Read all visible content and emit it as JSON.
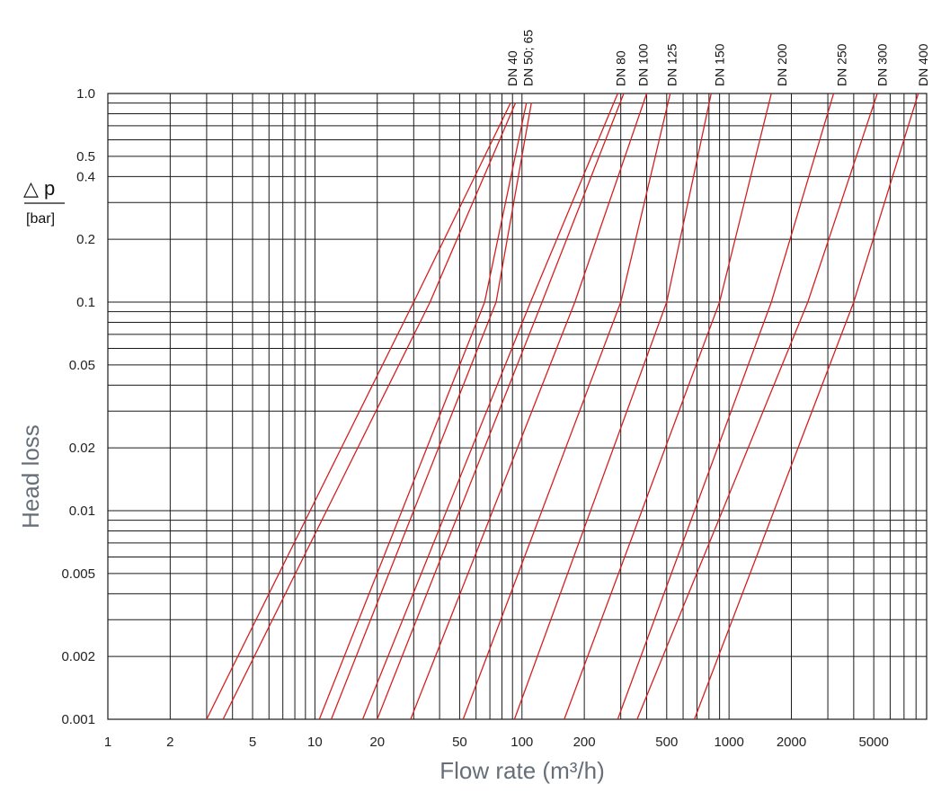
{
  "chart_data": {
    "type": "line",
    "scale": {
      "x": "log",
      "y": "log"
    },
    "xlabel": "Flow rate (m³/h)",
    "ylabel": "Head loss",
    "ylabel_symbol": "△ p",
    "ylabel_unit": "[bar]",
    "xlim": [
      1,
      9000
    ],
    "ylim": [
      0.001,
      1.0
    ],
    "grid": true,
    "x_ticks": [
      {
        "value": 1,
        "label": "1"
      },
      {
        "value": 2,
        "label": "2"
      },
      {
        "value": 5,
        "label": "5"
      },
      {
        "value": 10,
        "label": "10"
      },
      {
        "value": 20,
        "label": "20"
      },
      {
        "value": 50,
        "label": "50"
      },
      {
        "value": 100,
        "label": "100"
      },
      {
        "value": 200,
        "label": "200"
      },
      {
        "value": 500,
        "label": "500"
      },
      {
        "value": 1000,
        "label": "1000"
      },
      {
        "value": 2000,
        "label": "2000"
      },
      {
        "value": 5000,
        "label": "5000"
      }
    ],
    "y_ticks": [
      {
        "value": 0.001,
        "label": "0.001"
      },
      {
        "value": 0.002,
        "label": "0.002"
      },
      {
        "value": 0.005,
        "label": "0.005"
      },
      {
        "value": 0.01,
        "label": "0.01"
      },
      {
        "value": 0.02,
        "label": "0.02"
      },
      {
        "value": 0.05,
        "label": "0.05"
      },
      {
        "value": 0.1,
        "label": "0.1"
      },
      {
        "value": 0.2,
        "label": "0.2"
      },
      {
        "value": 0.4,
        "label": "0.4"
      },
      {
        "value": 0.5,
        "label": "0.5"
      },
      {
        "value": 1.0,
        "label": "1.0"
      }
    ],
    "series_color": "#d42020",
    "series": [
      {
        "name": "DN 40",
        "points": [
          [
            3.0,
            0.001
          ],
          [
            30,
            0.1
          ],
          [
            88,
            0.9
          ]
        ]
      },
      {
        "name": "DN 40",
        "points": [
          [
            3.6,
            0.001
          ],
          [
            36,
            0.1
          ],
          [
            93,
            0.9
          ]
        ]
      },
      {
        "name": "DN 50; 65",
        "points": [
          [
            10.5,
            0.001
          ],
          [
            66,
            0.1
          ],
          [
            105,
            0.9
          ]
        ]
      },
      {
        "name": "DN 50; 65",
        "points": [
          [
            12,
            0.001
          ],
          [
            75,
            0.1
          ],
          [
            111,
            0.9
          ]
        ]
      },
      {
        "name": "DN 80",
        "points": [
          [
            17,
            0.001
          ],
          [
            110,
            0.1
          ],
          [
            290,
            1.0
          ]
        ]
      },
      {
        "name": "DN 80",
        "points": [
          [
            20,
            0.001
          ],
          [
            125,
            0.1
          ],
          [
            310,
            1.0
          ]
        ]
      },
      {
        "name": "DN 100",
        "points": [
          [
            29,
            0.001
          ],
          [
            180,
            0.1
          ],
          [
            400,
            1.0
          ]
        ]
      },
      {
        "name": "DN 125",
        "points": [
          [
            52,
            0.001
          ],
          [
            300,
            0.1
          ],
          [
            520,
            1.0
          ]
        ]
      },
      {
        "name": "DN 150",
        "points": [
          [
            92,
            0.001
          ],
          [
            500,
            0.1
          ],
          [
            820,
            1.0
          ]
        ]
      },
      {
        "name": "DN 200",
        "points": [
          [
            160,
            0.001
          ],
          [
            900,
            0.1
          ],
          [
            1600,
            1.0
          ]
        ]
      },
      {
        "name": "DN 250",
        "points": [
          [
            290,
            0.001
          ],
          [
            1600,
            0.1
          ],
          [
            3200,
            1.0
          ]
        ]
      },
      {
        "name": "DN 300",
        "points": [
          [
            360,
            0.001
          ],
          [
            2400,
            0.1
          ],
          [
            5200,
            1.0
          ]
        ]
      },
      {
        "name": "DN 400",
        "points": [
          [
            680,
            0.001
          ],
          [
            4000,
            0.1
          ],
          [
            8200,
            1.0
          ]
        ]
      }
    ],
    "dn_labels": [
      {
        "text": "DN 40",
        "x": 90
      },
      {
        "text": "DN 50; 65",
        "x": 107
      },
      {
        "text": "DN 80",
        "x": 300
      },
      {
        "text": "DN 100",
        "x": 385
      },
      {
        "text": "DN 125",
        "x": 530
      },
      {
        "text": "DN 150",
        "x": 900
      },
      {
        "text": "DN 200",
        "x": 1800
      },
      {
        "text": "DN 250",
        "x": 3500
      },
      {
        "text": "DN 300",
        "x": 5500
      },
      {
        "text": "DN 400",
        "x": 9000
      }
    ]
  }
}
